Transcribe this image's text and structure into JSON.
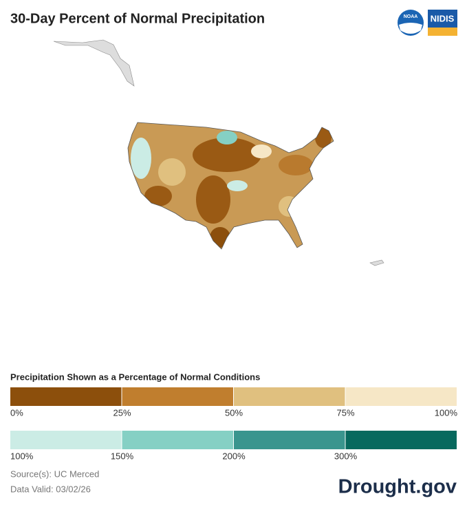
{
  "header": {
    "title": "30-Day Percent of Normal Precipitation",
    "logos": [
      "NOAA",
      "NIDIS"
    ]
  },
  "legend": {
    "title": "Precipitation Shown as a Percentage of Normal Conditions",
    "rows": [
      {
        "colors": [
          "#8c4f0c",
          "#c07e2e",
          "#e0c07f",
          "#f6e7c6"
        ],
        "labels": [
          "0%",
          "25%",
          "50%",
          "75%",
          "100%"
        ]
      },
      {
        "colors": [
          "#cbece5",
          "#85d0c4",
          "#3a958e",
          "#07695e"
        ],
        "labels": [
          "100%",
          "150%",
          "200%",
          "300%"
        ]
      }
    ]
  },
  "footer": {
    "source": "Source(s): UC Merced",
    "valid": "Data Valid: 03/02/26",
    "brand": "Drought.gov"
  }
}
